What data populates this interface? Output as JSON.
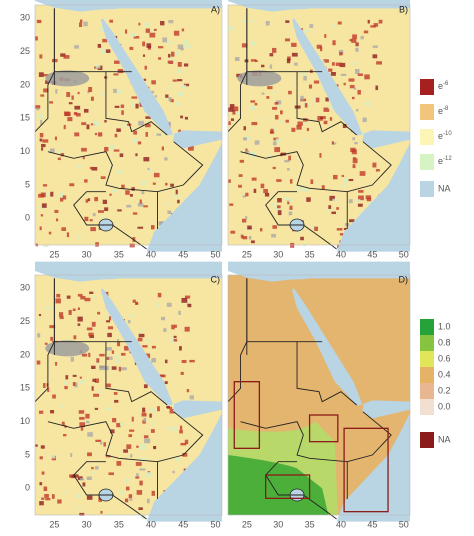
{
  "panels": [
    {
      "label": "A)"
    },
    {
      "label": "B)"
    },
    {
      "label": "C)"
    },
    {
      "label": "D)"
    }
  ],
  "x_ticks": [
    25,
    30,
    35,
    40,
    45,
    50
  ],
  "y_ticks": [
    0,
    5,
    10,
    15,
    20,
    25,
    30
  ],
  "legend_top": {
    "items": [
      {
        "base": "e",
        "exp": "-6"
      },
      {
        "base": "e",
        "exp": "-8"
      },
      {
        "base": "e",
        "exp": "-10"
      },
      {
        "base": "e",
        "exp": "-12"
      }
    ],
    "na": "NA"
  },
  "legend_bottom": {
    "items": [
      "1.0",
      "0.8",
      "0.6",
      "0.4",
      "0.2",
      "0.0"
    ],
    "na": "NA"
  }
}
